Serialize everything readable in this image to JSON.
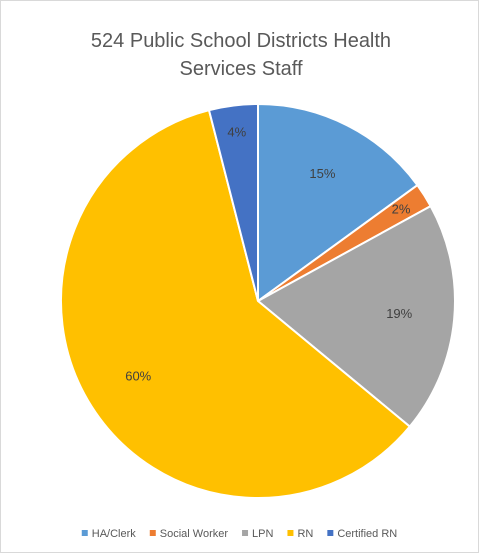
{
  "chart_data": {
    "type": "pie",
    "title": "524 Public School Districts Health Services Staff",
    "categories": [
      "HA/Clerk",
      "Social Worker",
      "LPN",
      "RN",
      "Certified RN"
    ],
    "values": [
      15,
      2,
      19,
      60,
      4
    ],
    "value_labels": [
      "15%",
      "2%",
      "19%",
      "60%",
      "4%"
    ],
    "colors": [
      "#5b9bd5",
      "#ed7d31",
      "#a5a5a5",
      "#ffc000",
      "#4472c4"
    ],
    "legend": "bottom"
  }
}
